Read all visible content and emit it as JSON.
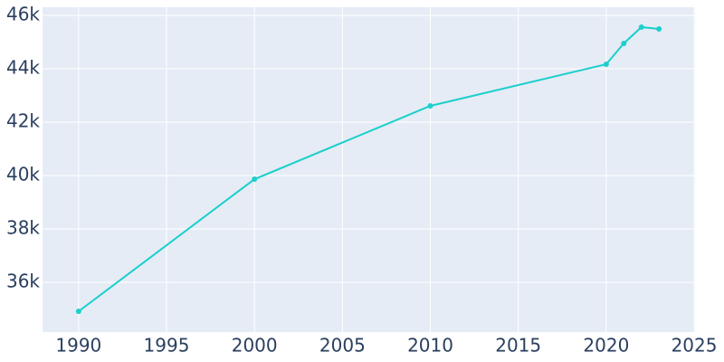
{
  "chart_data": {
    "type": "line",
    "x": [
      1990,
      2000,
      2010,
      2020,
      2021,
      2022,
      2023
    ],
    "series": [
      {
        "color": "#1ccfcc",
        "values": [
          34915,
          39864,
          42610,
          44170,
          44950,
          45560,
          45490
        ]
      }
    ],
    "xlim": [
      1987.95,
      2025.05
    ],
    "xticks": [
      1990,
      1995,
      2000,
      2005,
      2010,
      2015,
      2020,
      2025
    ],
    "ylim": [
      34136,
      46305
    ],
    "yticks": [
      {
        "value": 36000,
        "label": "36k"
      },
      {
        "value": 38000,
        "label": "38k"
      },
      {
        "value": 40000,
        "label": "40k"
      },
      {
        "value": 42000,
        "label": "42k"
      },
      {
        "value": 44000,
        "label": "44k"
      },
      {
        "value": 46000,
        "label": "46k"
      }
    ],
    "grid": true
  }
}
